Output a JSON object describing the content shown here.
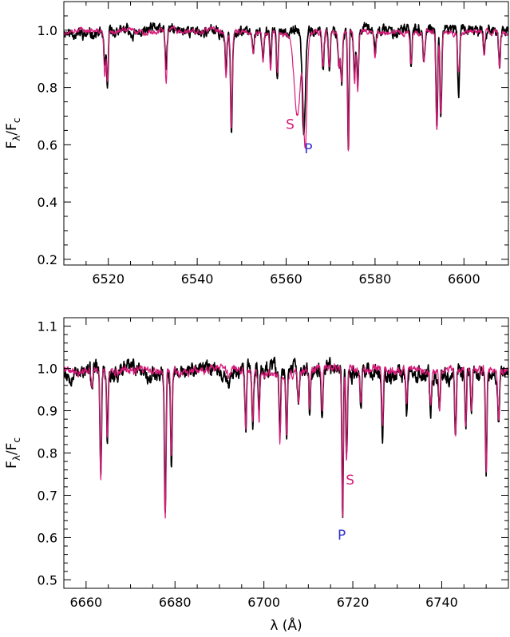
{
  "chart_data": [
    {
      "type": "line",
      "xlim": [
        6510,
        6610
      ],
      "ylim": [
        0.18,
        1.1
      ],
      "x_ticks": [
        6520,
        6540,
        6560,
        6580,
        6600
      ],
      "y_ticks": [
        0.2,
        0.4,
        0.6,
        0.8,
        1.0
      ],
      "x_tick_labels": [
        "6520",
        "6540",
        "6560",
        "6580",
        "6600"
      ],
      "y_tick_labels": [
        "0.2",
        "0.4",
        "0.6",
        "0.8",
        "1.0"
      ],
      "ylabel": "Fλ/Fc",
      "xlabel": "",
      "grid": false,
      "series": [
        {
          "color": "#000000",
          "seed": 11,
          "noise": 0.012,
          "lines": [
            [
              6519.2,
              0.88,
              0.22
            ],
            [
              6519.8,
              0.8,
              0.18
            ],
            [
              6533.0,
              0.86,
              0.2
            ],
            [
              6546.5,
              0.87,
              0.2
            ],
            [
              6547.7,
              0.66,
              0.2
            ],
            [
              6552.6,
              0.93,
              0.2
            ],
            [
              6554.8,
              0.91,
              0.2
            ],
            [
              6556.5,
              0.88,
              0.2
            ],
            [
              6558.0,
              0.85,
              0.2
            ],
            [
              6564.0,
              0.63,
              0.35
            ],
            [
              6568.3,
              0.88,
              0.2
            ],
            [
              6569.7,
              0.86,
              0.2
            ],
            [
              6571.9,
              0.88,
              0.2
            ],
            [
              6572.5,
              0.83,
              0.2
            ],
            [
              6574.0,
              0.58,
              0.16
            ],
            [
              6575.4,
              0.83,
              0.2
            ],
            [
              6576.1,
              0.8,
              0.2
            ],
            [
              6580.0,
              0.92,
              0.2
            ],
            [
              6588.1,
              0.88,
              0.2
            ],
            [
              6591.0,
              0.9,
              0.2
            ],
            [
              6593.9,
              0.66,
              0.2
            ],
            [
              6594.8,
              0.7,
              0.2
            ],
            [
              6598.8,
              0.77,
              0.2
            ],
            [
              6604.5,
              0.92,
              0.2
            ],
            [
              6608.0,
              0.88,
              0.2
            ]
          ]
        },
        {
          "color": "#d81b7a",
          "seed": 37,
          "noise": 0.006,
          "lines": [
            [
              6519.2,
              0.85,
              0.2
            ],
            [
              6519.8,
              0.82,
              0.18
            ],
            [
              6533.0,
              0.81,
              0.2
            ],
            [
              6546.5,
              0.84,
              0.2
            ],
            [
              6547.7,
              0.67,
              0.2
            ],
            [
              6552.6,
              0.93,
              0.2
            ],
            [
              6554.8,
              0.9,
              0.2
            ],
            [
              6556.5,
              0.87,
              0.2
            ],
            [
              6558.0,
              0.86,
              0.2
            ],
            [
              6562.5,
              0.72,
              0.7
            ],
            [
              6564.3,
              0.6,
              0.38
            ],
            [
              6568.3,
              0.88,
              0.2
            ],
            [
              6569.7,
              0.87,
              0.2
            ],
            [
              6571.9,
              0.88,
              0.2
            ],
            [
              6572.5,
              0.82,
              0.2
            ],
            [
              6574.0,
              0.58,
              0.16
            ],
            [
              6575.4,
              0.82,
              0.2
            ],
            [
              6576.1,
              0.8,
              0.2
            ],
            [
              6580.0,
              0.92,
              0.2
            ],
            [
              6588.1,
              0.89,
              0.2
            ],
            [
              6591.0,
              0.9,
              0.2
            ],
            [
              6593.9,
              0.66,
              0.2
            ],
            [
              6594.8,
              0.71,
              0.2
            ],
            [
              6598.8,
              0.86,
              0.2
            ],
            [
              6604.5,
              0.92,
              0.2
            ],
            [
              6608.0,
              0.87,
              0.2
            ]
          ]
        }
      ],
      "annotations": [
        {
          "text": "S",
          "x": 6560.9,
          "y": 0.655,
          "color": "#d81b7a"
        },
        {
          "text": "P",
          "x": 6565.0,
          "y": 0.57,
          "color": "#3333cc"
        }
      ]
    },
    {
      "type": "line",
      "xlim": [
        6655,
        6755
      ],
      "ylim": [
        0.48,
        1.12
      ],
      "x_ticks": [
        6660,
        6680,
        6700,
        6720,
        6740
      ],
      "y_ticks": [
        0.5,
        0.6,
        0.7,
        0.8,
        0.9,
        1.0,
        1.1
      ],
      "x_tick_labels": [
        "6660",
        "6680",
        "6700",
        "6720",
        "6740"
      ],
      "y_tick_labels": [
        "0.5",
        "0.6",
        "0.7",
        "0.8",
        "0.9",
        "1.0",
        "1.1"
      ],
      "ylabel": "Fλ/Fc",
      "xlabel": "λ (Å)",
      "grid": false,
      "series": [
        {
          "color": "#000000",
          "seed": 53,
          "noise": 0.012,
          "lines": [
            [
              6661.3,
              0.96,
              0.2
            ],
            [
              6663.3,
              0.75,
              0.17
            ],
            [
              6664.8,
              0.84,
              0.17
            ],
            [
              6677.8,
              0.66,
              0.17
            ],
            [
              6679.2,
              0.79,
              0.17
            ],
            [
              6692.2,
              0.97,
              0.3
            ],
            [
              6695.9,
              0.85,
              0.17
            ],
            [
              6697.5,
              0.88,
              0.17
            ],
            [
              6698.9,
              0.89,
              0.17
            ],
            [
              6703.6,
              0.85,
              0.17
            ],
            [
              6705.1,
              0.84,
              0.17
            ],
            [
              6707.8,
              0.93,
              0.2
            ],
            [
              6710.3,
              0.91,
              0.17
            ],
            [
              6713.1,
              0.89,
              0.17
            ],
            [
              6717.7,
              0.65,
              0.17
            ],
            [
              6718.6,
              0.8,
              0.17
            ],
            [
              6721.8,
              0.92,
              0.17
            ],
            [
              6726.7,
              0.86,
              0.17
            ],
            [
              6732.1,
              0.92,
              0.17
            ],
            [
              6737.5,
              0.91,
              0.17
            ],
            [
              6739.5,
              0.91,
              0.17
            ],
            [
              6743.1,
              0.82,
              0.17
            ],
            [
              6745.4,
              0.86,
              0.17
            ],
            [
              6746.7,
              0.9,
              0.17
            ],
            [
              6750.0,
              0.77,
              0.17
            ],
            [
              6752.8,
              0.88,
              0.17
            ]
          ]
        },
        {
          "color": "#d81b7a",
          "seed": 71,
          "noise": 0.006,
          "lines": [
            [
              6661.3,
              0.96,
              0.2
            ],
            [
              6663.3,
              0.74,
              0.17
            ],
            [
              6664.8,
              0.85,
              0.17
            ],
            [
              6677.8,
              0.64,
              0.17
            ],
            [
              6679.2,
              0.79,
              0.17
            ],
            [
              6692.2,
              0.98,
              0.3
            ],
            [
              6695.9,
              0.86,
              0.17
            ],
            [
              6697.5,
              0.88,
              0.17
            ],
            [
              6698.9,
              0.89,
              0.17
            ],
            [
              6703.6,
              0.84,
              0.17
            ],
            [
              6705.1,
              0.85,
              0.17
            ],
            [
              6707.8,
              0.93,
              0.2
            ],
            [
              6710.3,
              0.9,
              0.17
            ],
            [
              6713.1,
              0.89,
              0.17
            ],
            [
              6717.7,
              0.64,
              0.17
            ],
            [
              6718.6,
              0.78,
              0.17
            ],
            [
              6721.8,
              0.92,
              0.17
            ],
            [
              6726.7,
              0.86,
              0.17
            ],
            [
              6732.1,
              0.92,
              0.17
            ],
            [
              6737.5,
              0.92,
              0.17
            ],
            [
              6739.5,
              0.91,
              0.17
            ],
            [
              6743.1,
              0.84,
              0.17
            ],
            [
              6745.4,
              0.86,
              0.17
            ],
            [
              6746.7,
              0.9,
              0.17
            ],
            [
              6750.0,
              0.76,
              0.17
            ],
            [
              6752.8,
              0.88,
              0.17
            ]
          ]
        }
      ],
      "annotations": [
        {
          "text": "S",
          "x": 6719.4,
          "y": 0.725,
          "color": "#d81b7a"
        },
        {
          "text": "P",
          "x": 6717.5,
          "y": 0.595,
          "color": "#3333cc"
        }
      ]
    }
  ]
}
